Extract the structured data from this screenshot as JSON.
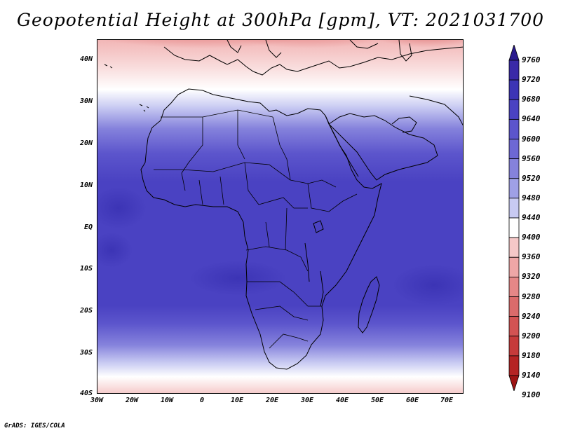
{
  "title": "Geopotential Height at 300hPa [gpm], VT: 2021031700",
  "credit": "GrADS: IGES/COLA",
  "map": {
    "region": "Africa",
    "projection": "latlon"
  },
  "axes": {
    "lat_labels": [
      "40N",
      "30N",
      "20N",
      "10N",
      "EQ",
      "10S",
      "20S",
      "30S",
      "40S"
    ],
    "lon_labels": [
      "30W",
      "20W",
      "10W",
      "0",
      "10E",
      "20E",
      "30E",
      "40E",
      "50E",
      "60E",
      "70E"
    ]
  },
  "colorbar": {
    "levels": [
      "9760",
      "9720",
      "9680",
      "9640",
      "9600",
      "9560",
      "9520",
      "9480",
      "9440",
      "9400",
      "9360",
      "9320",
      "9280",
      "9240",
      "9200",
      "9180",
      "9140",
      "9100"
    ],
    "colors": [
      "#2a1a8e",
      "#3a2aa8",
      "#3c34b5",
      "#4a42c2",
      "#5c55cc",
      "#6d68d4",
      "#8582dc",
      "#9fa0e6",
      "#c8caf2",
      "#ffffff",
      "#f5c8c8",
      "#eea6a6",
      "#e58787",
      "#db6b6b",
      "#d35353",
      "#c63b3b",
      "#b52424",
      "#9e1414"
    ]
  }
}
